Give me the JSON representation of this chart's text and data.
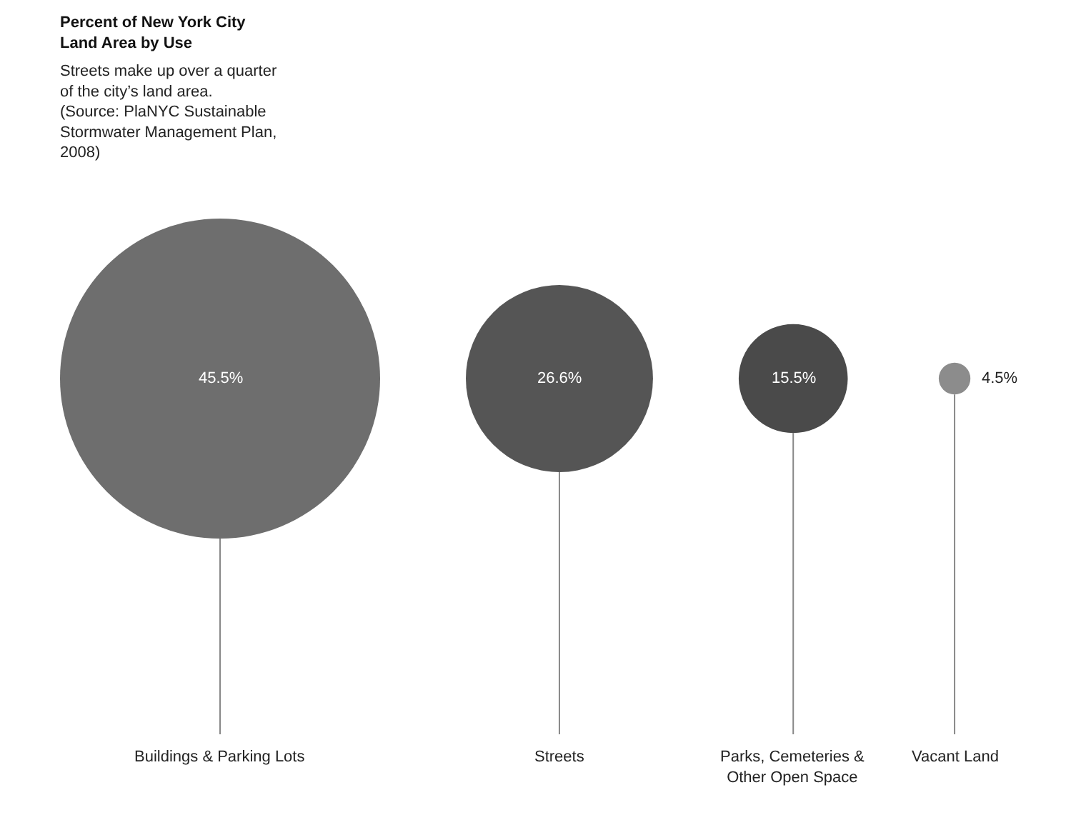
{
  "chart_data": {
    "type": "other",
    "title": "Percent of New York City Land Area by Use",
    "subtitle": "Streets make up over a quarter of the city’s land area. (Source: PlaNYC Sustainable Stormwater Management Plan, 2008)",
    "categories": [
      "Buildings & Parking Lots",
      "Streets",
      "Parks, Cemeteries & Other Open Space",
      "Vacant Land"
    ],
    "values": [
      45.5,
      26.6,
      15.5,
      4.5
    ],
    "value_labels": [
      "45.5%",
      "26.6%",
      "15.5%",
      "4.5%"
    ],
    "colors": [
      "#6e6e6e",
      "#555555",
      "#4a4a4a",
      "#8c8c8c"
    ]
  }
}
